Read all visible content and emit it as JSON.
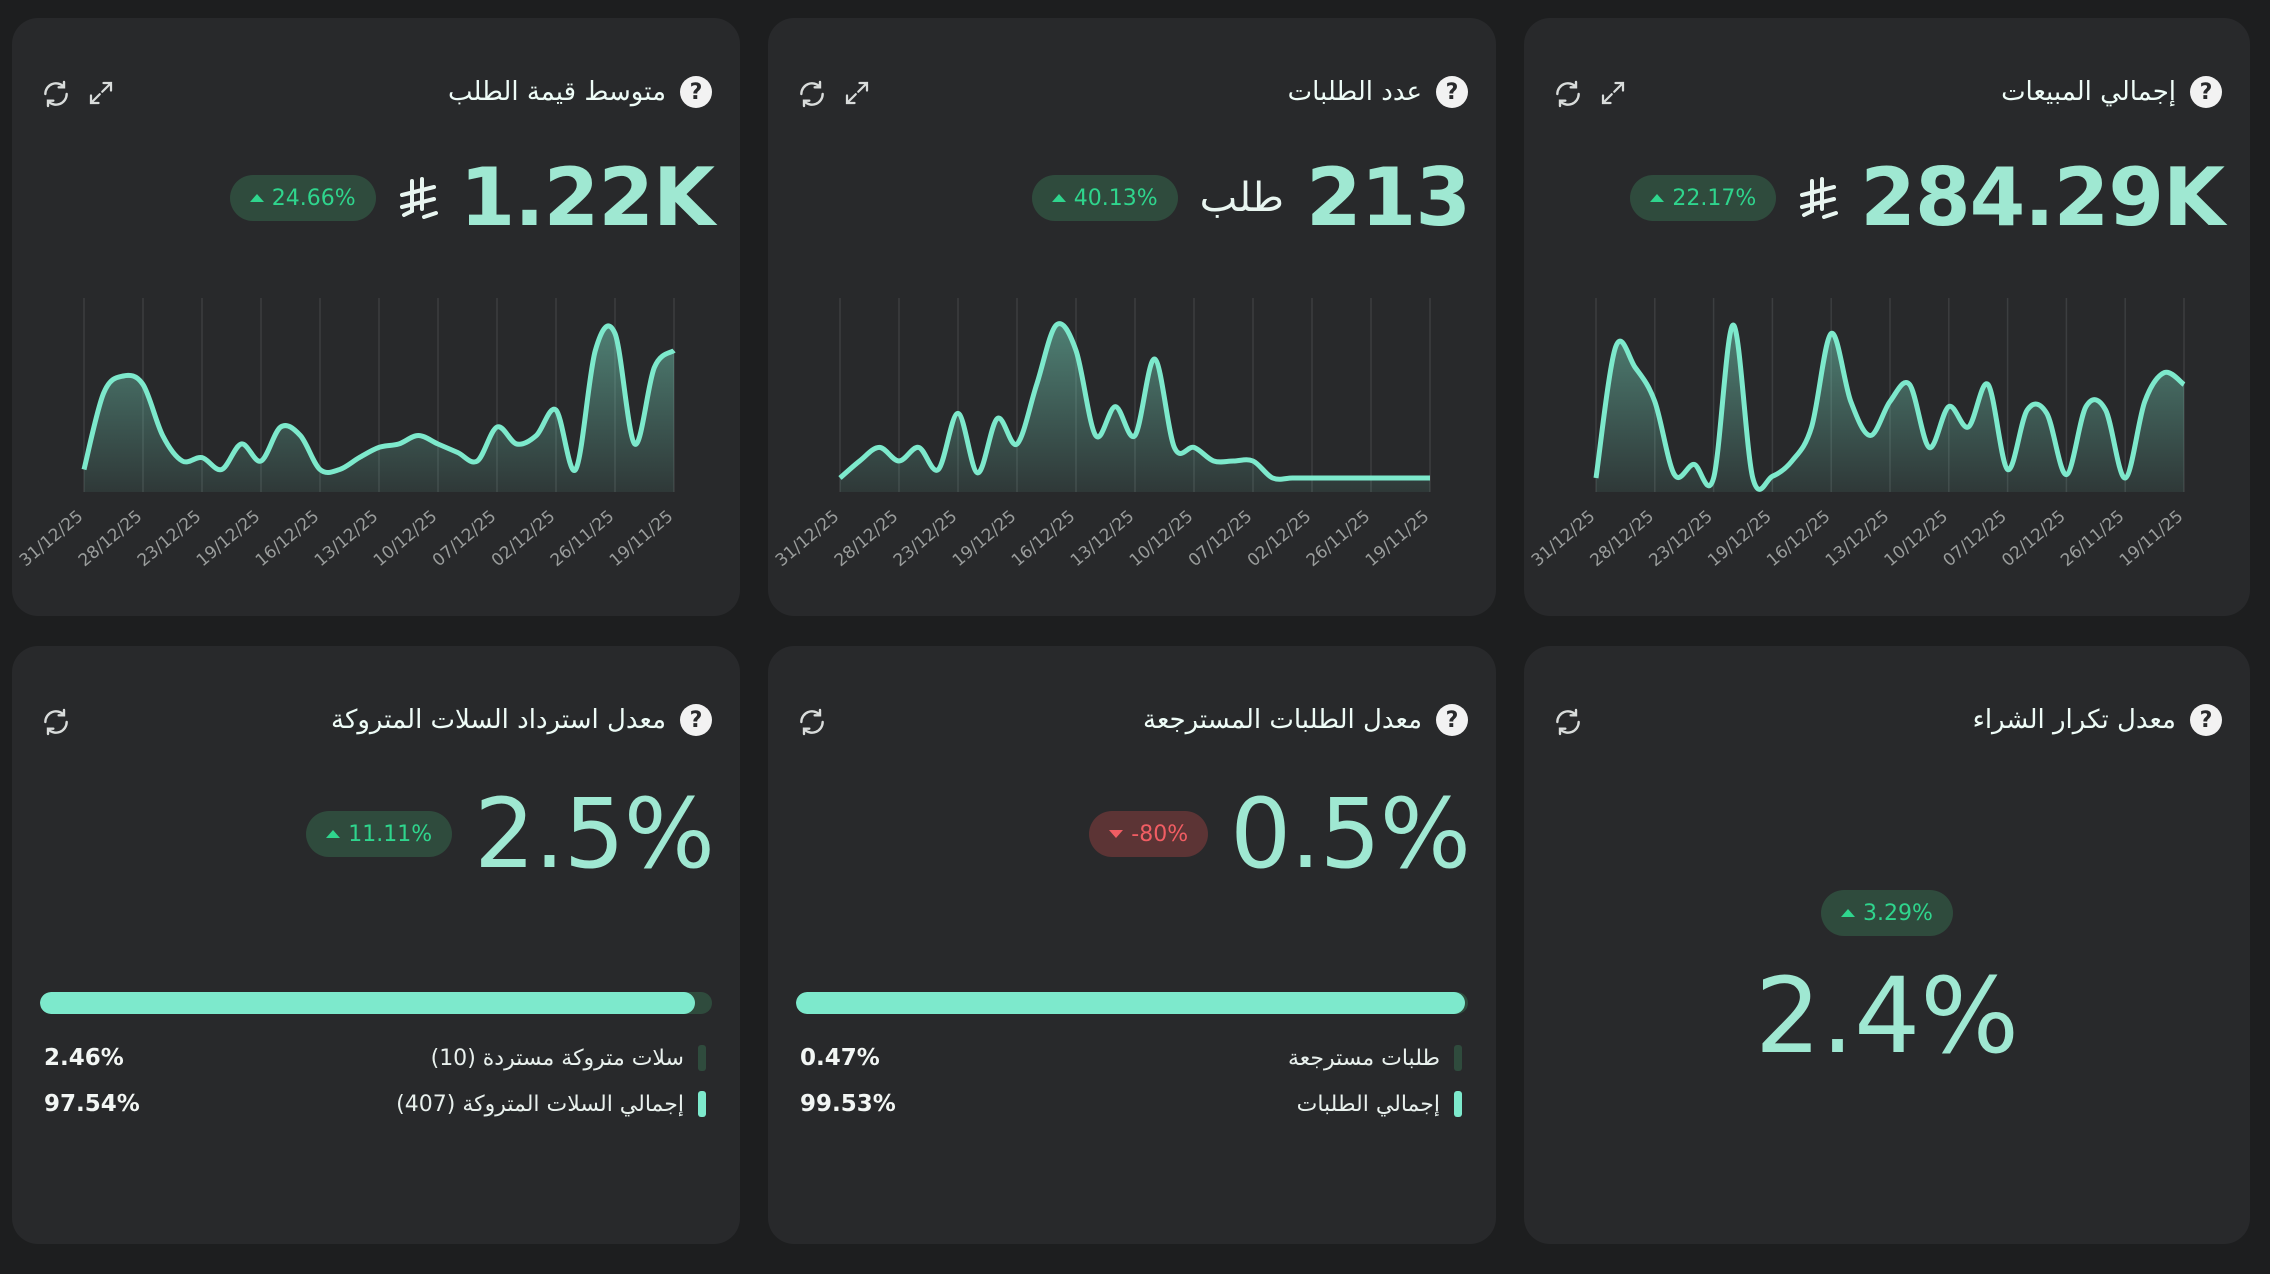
{
  "colors": {
    "accent": "#7de9cc",
    "accent_dark": "#2f4b3d",
    "up": "#2fd58d",
    "down": "#f15d63",
    "card": "#28292b",
    "background": "#1d1e1f"
  },
  "currency_icon": "saudi-riyal-icon",
  "cards": {
    "total_sales": {
      "title": "إجمالي المبيعات",
      "value": "284.29K",
      "change": "22.17%",
      "trend": "up"
    },
    "orders_count": {
      "title": "عدد الطلبات",
      "value": "213",
      "unit": "طلب",
      "change": "40.13%",
      "trend": "up"
    },
    "avg_order_value": {
      "title": "متوسط قيمة الطلب",
      "value": "1.22K",
      "change": "24.66%",
      "trend": "up"
    },
    "repeat_purchase": {
      "title": "معدل تكرار الشراء",
      "value": "2.4%",
      "change": "3.29%",
      "trend": "up"
    },
    "refund_rate": {
      "title": "معدل الطلبات المسترجعة",
      "value": "0.5%",
      "change": "-80%",
      "trend": "down",
      "bar_fraction": 0.9953,
      "legend": [
        {
          "label": "طلبات مسترجعة",
          "pct": "0.47%"
        },
        {
          "label": "إجمالي الطلبات",
          "pct": "99.53%"
        }
      ]
    },
    "abandoned_recovery": {
      "title": "معدل استرداد السلات المتروكة",
      "value": "2.5%",
      "change": "11.11%",
      "trend": "up",
      "bar_fraction": 0.9754,
      "legend": [
        {
          "label": "سلات متروكة مستردة (10)",
          "pct": "2.46%"
        },
        {
          "label": "إجمالي السلات المتروكة (407)",
          "pct": "97.54%"
        }
      ]
    }
  },
  "chart_data": [
    {
      "type": "area",
      "title": "إجمالي المبيعات",
      "x_ticks": [
        "19/11/25",
        "26/11/25",
        "02/12/25",
        "07/12/25",
        "10/12/25",
        "13/12/25",
        "16/12/25",
        "19/12/25",
        "23/12/25",
        "28/12/25",
        "31/12/25"
      ],
      "values": [
        0.55,
        0.62,
        0.45,
        0.0,
        0.4,
        0.42,
        0.02,
        0.38,
        0.4,
        0.05,
        0.55,
        0.3,
        0.42,
        0.18,
        0.55,
        0.45,
        0.25,
        0.45,
        0.85,
        0.3,
        0.1,
        0.01,
        0.0,
        0.9,
        0.0,
        0.08,
        0.02,
        0.45,
        0.65,
        0.77,
        0.0
      ],
      "y_unit": "relative"
    },
    {
      "type": "area",
      "title": "عدد الطلبات",
      "x_ticks": [
        "19/11/25",
        "26/11/25",
        "02/12/25",
        "07/12/25",
        "10/12/25",
        "13/12/25",
        "16/12/25",
        "19/12/25",
        "23/12/25",
        "28/12/25",
        "31/12/25"
      ],
      "values": [
        0.0,
        0.0,
        0.0,
        0.0,
        0.0,
        0.0,
        0.0,
        0.0,
        0.0,
        0.1,
        0.1,
        0.1,
        0.18,
        0.18,
        0.7,
        0.25,
        0.42,
        0.25,
        0.75,
        0.9,
        0.55,
        0.2,
        0.35,
        0.03,
        0.38,
        0.05,
        0.18,
        0.1,
        0.18,
        0.1,
        0.0
      ],
      "y_unit": "relative"
    },
    {
      "type": "area",
      "title": "متوسط قيمة الطلب",
      "x_ticks": [
        "19/11/25",
        "26/11/25",
        "02/12/25",
        "07/12/25",
        "10/12/25",
        "13/12/25",
        "16/12/25",
        "19/12/25",
        "23/12/25",
        "28/12/25",
        "31/12/25"
      ],
      "values": [
        0.75,
        0.65,
        0.2,
        0.85,
        0.75,
        0.05,
        0.4,
        0.25,
        0.2,
        0.3,
        0.1,
        0.15,
        0.2,
        0.25,
        0.2,
        0.18,
        0.12,
        0.05,
        0.05,
        0.25,
        0.3,
        0.1,
        0.2,
        0.05,
        0.12,
        0.1,
        0.25,
        0.55,
        0.6,
        0.5,
        0.05
      ],
      "y_unit": "relative"
    }
  ]
}
